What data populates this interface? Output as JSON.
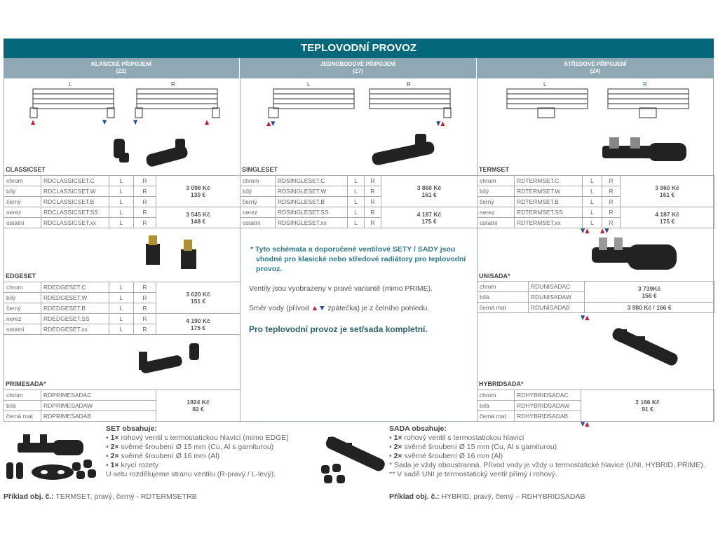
{
  "title": "TEPLOVODNÍ PROVOZ",
  "columns": [
    {
      "title": "KLASICKÉ PŘIPOJENÍ",
      "code": "(Z2)",
      "left_label": "L",
      "right_label": "R"
    },
    {
      "title": "JEDNOBODOVÉ PŘIPOJENÍ",
      "code": "(Z7)",
      "left_label": "L",
      "right_label": "R"
    },
    {
      "title": "STŘEDOVÉ PŘIPOJENÍ",
      "code": "(Z4)",
      "left_label": "L",
      "right_label": "R"
    }
  ],
  "products": {
    "classicset": {
      "name": "CLASSICSET",
      "rows": [
        [
          "chrom",
          "RDCLASSICSET.C",
          "L",
          "R"
        ],
        [
          "bílý",
          "RDCLASSICSET.W",
          "L",
          "R"
        ],
        [
          "černý",
          "RDCLASSICSET.B",
          "L",
          "R"
        ],
        [
          "nerez",
          "RDCLASSICSET.SS",
          "L",
          "R"
        ],
        [
          "ostatní",
          "RDCLASSICSET.xx",
          "L",
          "R"
        ]
      ],
      "prices": [
        [
          "3 098 Kč",
          "130 €"
        ],
        [
          "3 545 Kč",
          "148 €"
        ]
      ]
    },
    "edgeset": {
      "name": "EDGESET",
      "rows": [
        [
          "chrom",
          "RDEDGESET.C",
          "L",
          "R"
        ],
        [
          "bílý",
          "RDEDGESET.W",
          "L",
          "R"
        ],
        [
          "černý",
          "RDEDGESET.B",
          "L",
          "R"
        ],
        [
          "nerez",
          "RDEDGESET.SS",
          "L",
          "R"
        ],
        [
          "ostatní",
          "RDEDGESET.xx",
          "L",
          "R"
        ]
      ],
      "prices": [
        [
          "3 620 Kč",
          "151 €"
        ],
        [
          "4 190 Kč",
          "175 €"
        ]
      ]
    },
    "primesada": {
      "name": "PRIMESADA*",
      "rows": [
        [
          "chrom",
          "RDPRIMESADAC"
        ],
        [
          "bílá",
          "RDPRIMESADAW"
        ],
        [
          "černá mat",
          "RDPRIMESADAB"
        ]
      ],
      "prices": [
        [
          "1924 Kč",
          "82 €"
        ]
      ]
    },
    "singleset": {
      "name": "SINGLESET",
      "rows": [
        [
          "chrom",
          "RDSINGLESET.C",
          "L",
          "R"
        ],
        [
          "bílý",
          "RDSINGLESET.W",
          "L",
          "R"
        ],
        [
          "černý",
          "RDSINGLESET.B",
          "L",
          "R"
        ],
        [
          "nerez",
          "RDSINGLESET.SS",
          "L",
          "R"
        ],
        [
          "ostatní",
          "RDSINGLESET.xx",
          "L",
          "R"
        ]
      ],
      "prices": [
        [
          "3 860 Kč",
          "161 €"
        ],
        [
          "4 187 Kč",
          "175 €"
        ]
      ]
    },
    "termset": {
      "name": "TERMSET",
      "rows": [
        [
          "chrom",
          "RDTERMSET.C",
          "L",
          "R"
        ],
        [
          "bílý",
          "RDTERMSET.W",
          "L",
          "R"
        ],
        [
          "černý",
          "RDTERMSET.B",
          "L",
          "R"
        ],
        [
          "nerez",
          "RDTERMSET.SS",
          "L",
          "R"
        ],
        [
          "ostatní",
          "RDTERMSET.xx",
          "L",
          "R"
        ]
      ],
      "prices": [
        [
          "3 860 Kč",
          "161 €"
        ],
        [
          "4 187 Kč",
          "175 €"
        ]
      ]
    },
    "unisada": {
      "name": "UNISADA*",
      "rows": [
        [
          "chrom",
          "RDUNISADAC"
        ],
        [
          "bílá",
          "RDUNISADAW"
        ],
        [
          "černá mat",
          "RDUNISADAB"
        ]
      ],
      "prices": [
        [
          "3 739Kč",
          "156 €"
        ],
        [
          "3 980 Kč / 166 €"
        ]
      ]
    },
    "hybridsada": {
      "name": "HYBRIDSADA*",
      "rows": [
        [
          "chrom",
          "RDHYBRIDSADAC"
        ],
        [
          "bílá",
          "RDHYBRIDSADAW"
        ],
        [
          "černá mat",
          "RDHYBRIDSADAB"
        ]
      ],
      "prices": [
        [
          "2 166 Kč",
          "91 €"
        ]
      ]
    }
  },
  "notes": {
    "highlight": "* Tyto schémata a doporučené ventilové SETY / SADY jsou vhodné pro klasické nebo středové radiátory pro teplovodní provoz.",
    "variant": "Ventily jsou vyobrazeny v pravé variantě (mimo PRIME).",
    "direction_before": "Směr vody (přívod",
    "direction_after": "zpátečka) je z čelního pohledu.",
    "complete": "Pro teplovodní provoz je set/sada kompletní."
  },
  "set_contents": {
    "title": "SET obsahuje:",
    "items": [
      [
        "1×",
        "rohový ventil s termostatickou hlavicí (mimo EDGE)"
      ],
      [
        "2×",
        "svěrné šroubení Ø 15 mm (Cu, Al s garniturou)"
      ],
      [
        "2×",
        "svěrné šroubení Ø 16 mm (Al)"
      ],
      [
        "1×",
        "krycí rozety"
      ]
    ],
    "extra": "U setu rozdělujeme stranu ventilu (R-pravý / L-levý).",
    "example_label": "Příklad obj. č.:",
    "example": "TERMSET, pravý, černý - RDTERMSETRB"
  },
  "sada_contents": {
    "title": "SADA obsahuje:",
    "items": [
      [
        "1×",
        "rohový ventil s termostatickou hlavicí"
      ],
      [
        "2×",
        "svěrné šroubení Ø 15 mm (Cu, Al s garniturou)"
      ],
      [
        "2×",
        "svěrné šroubení Ø 16 mm (Al)"
      ]
    ],
    "extra1": "* Sada je vždy oboustranná. Přívod vody je vždy u termostatické hlavice (UNI, HYBRID, PRIME).",
    "extra2": "** V sadě UNI je termostatický ventil přímý i rohový.",
    "example_label": "Příklad obj. č.:",
    "example": "HYBRID, pravý, černý – RDHYBRIDSADAB"
  },
  "colors": {
    "title_bg": "#03687a",
    "header_bg": "#8fa8b3",
    "supply": "#c8202a",
    "return": "#2a4f9a",
    "accent": "#2c7a8a"
  }
}
